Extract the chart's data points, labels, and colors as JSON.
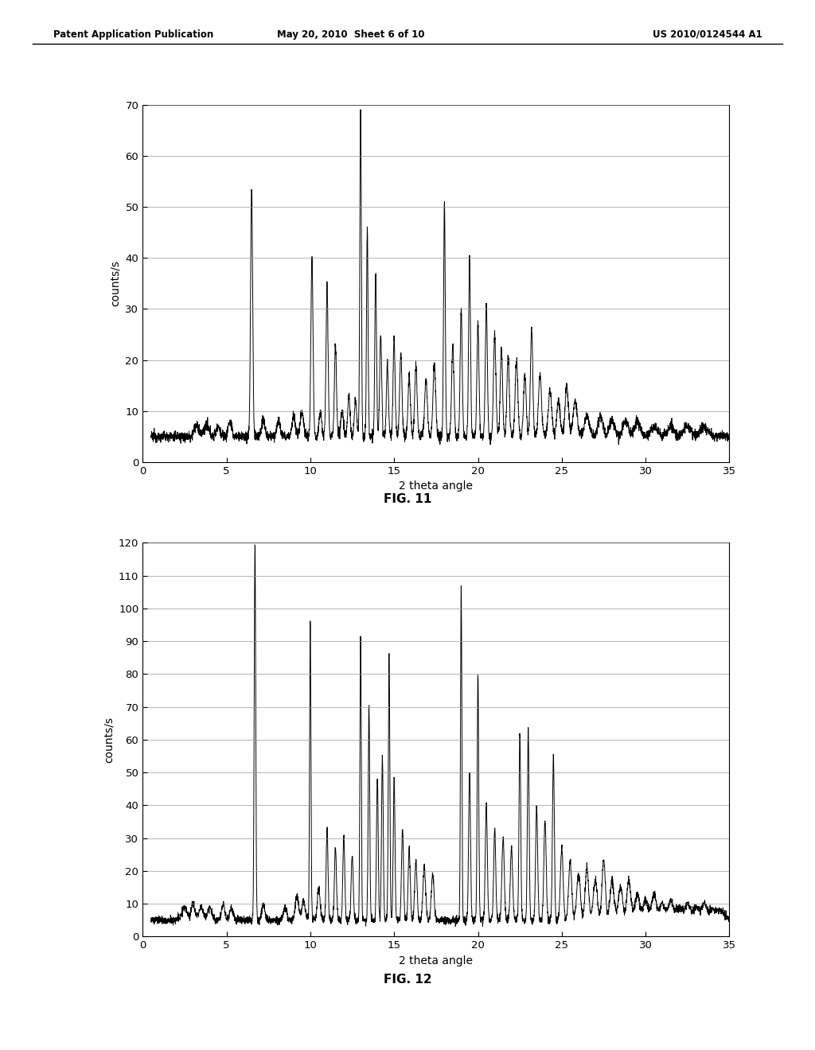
{
  "header_left": "Patent Application Publication",
  "header_mid": "May 20, 2010  Sheet 6 of 10",
  "header_right": "US 2010/0124544 A1",
  "fig11_label": "FIG. 11",
  "fig12_label": "FIG. 12",
  "xlabel": "2 theta angle",
  "ylabel": "counts/s",
  "fig11_ylim": [
    0,
    70
  ],
  "fig11_yticks": [
    0,
    10,
    20,
    30,
    40,
    50,
    60,
    70
  ],
  "fig12_ylim": [
    0,
    120
  ],
  "fig12_yticks": [
    0,
    10,
    20,
    30,
    40,
    50,
    60,
    70,
    80,
    90,
    100,
    110,
    120
  ],
  "xlim": [
    0,
    35
  ],
  "xticks": [
    0,
    5,
    10,
    15,
    20,
    25,
    30,
    35
  ],
  "background_color": "#ffffff",
  "line_color": "#000000",
  "grid_color": "#999999"
}
